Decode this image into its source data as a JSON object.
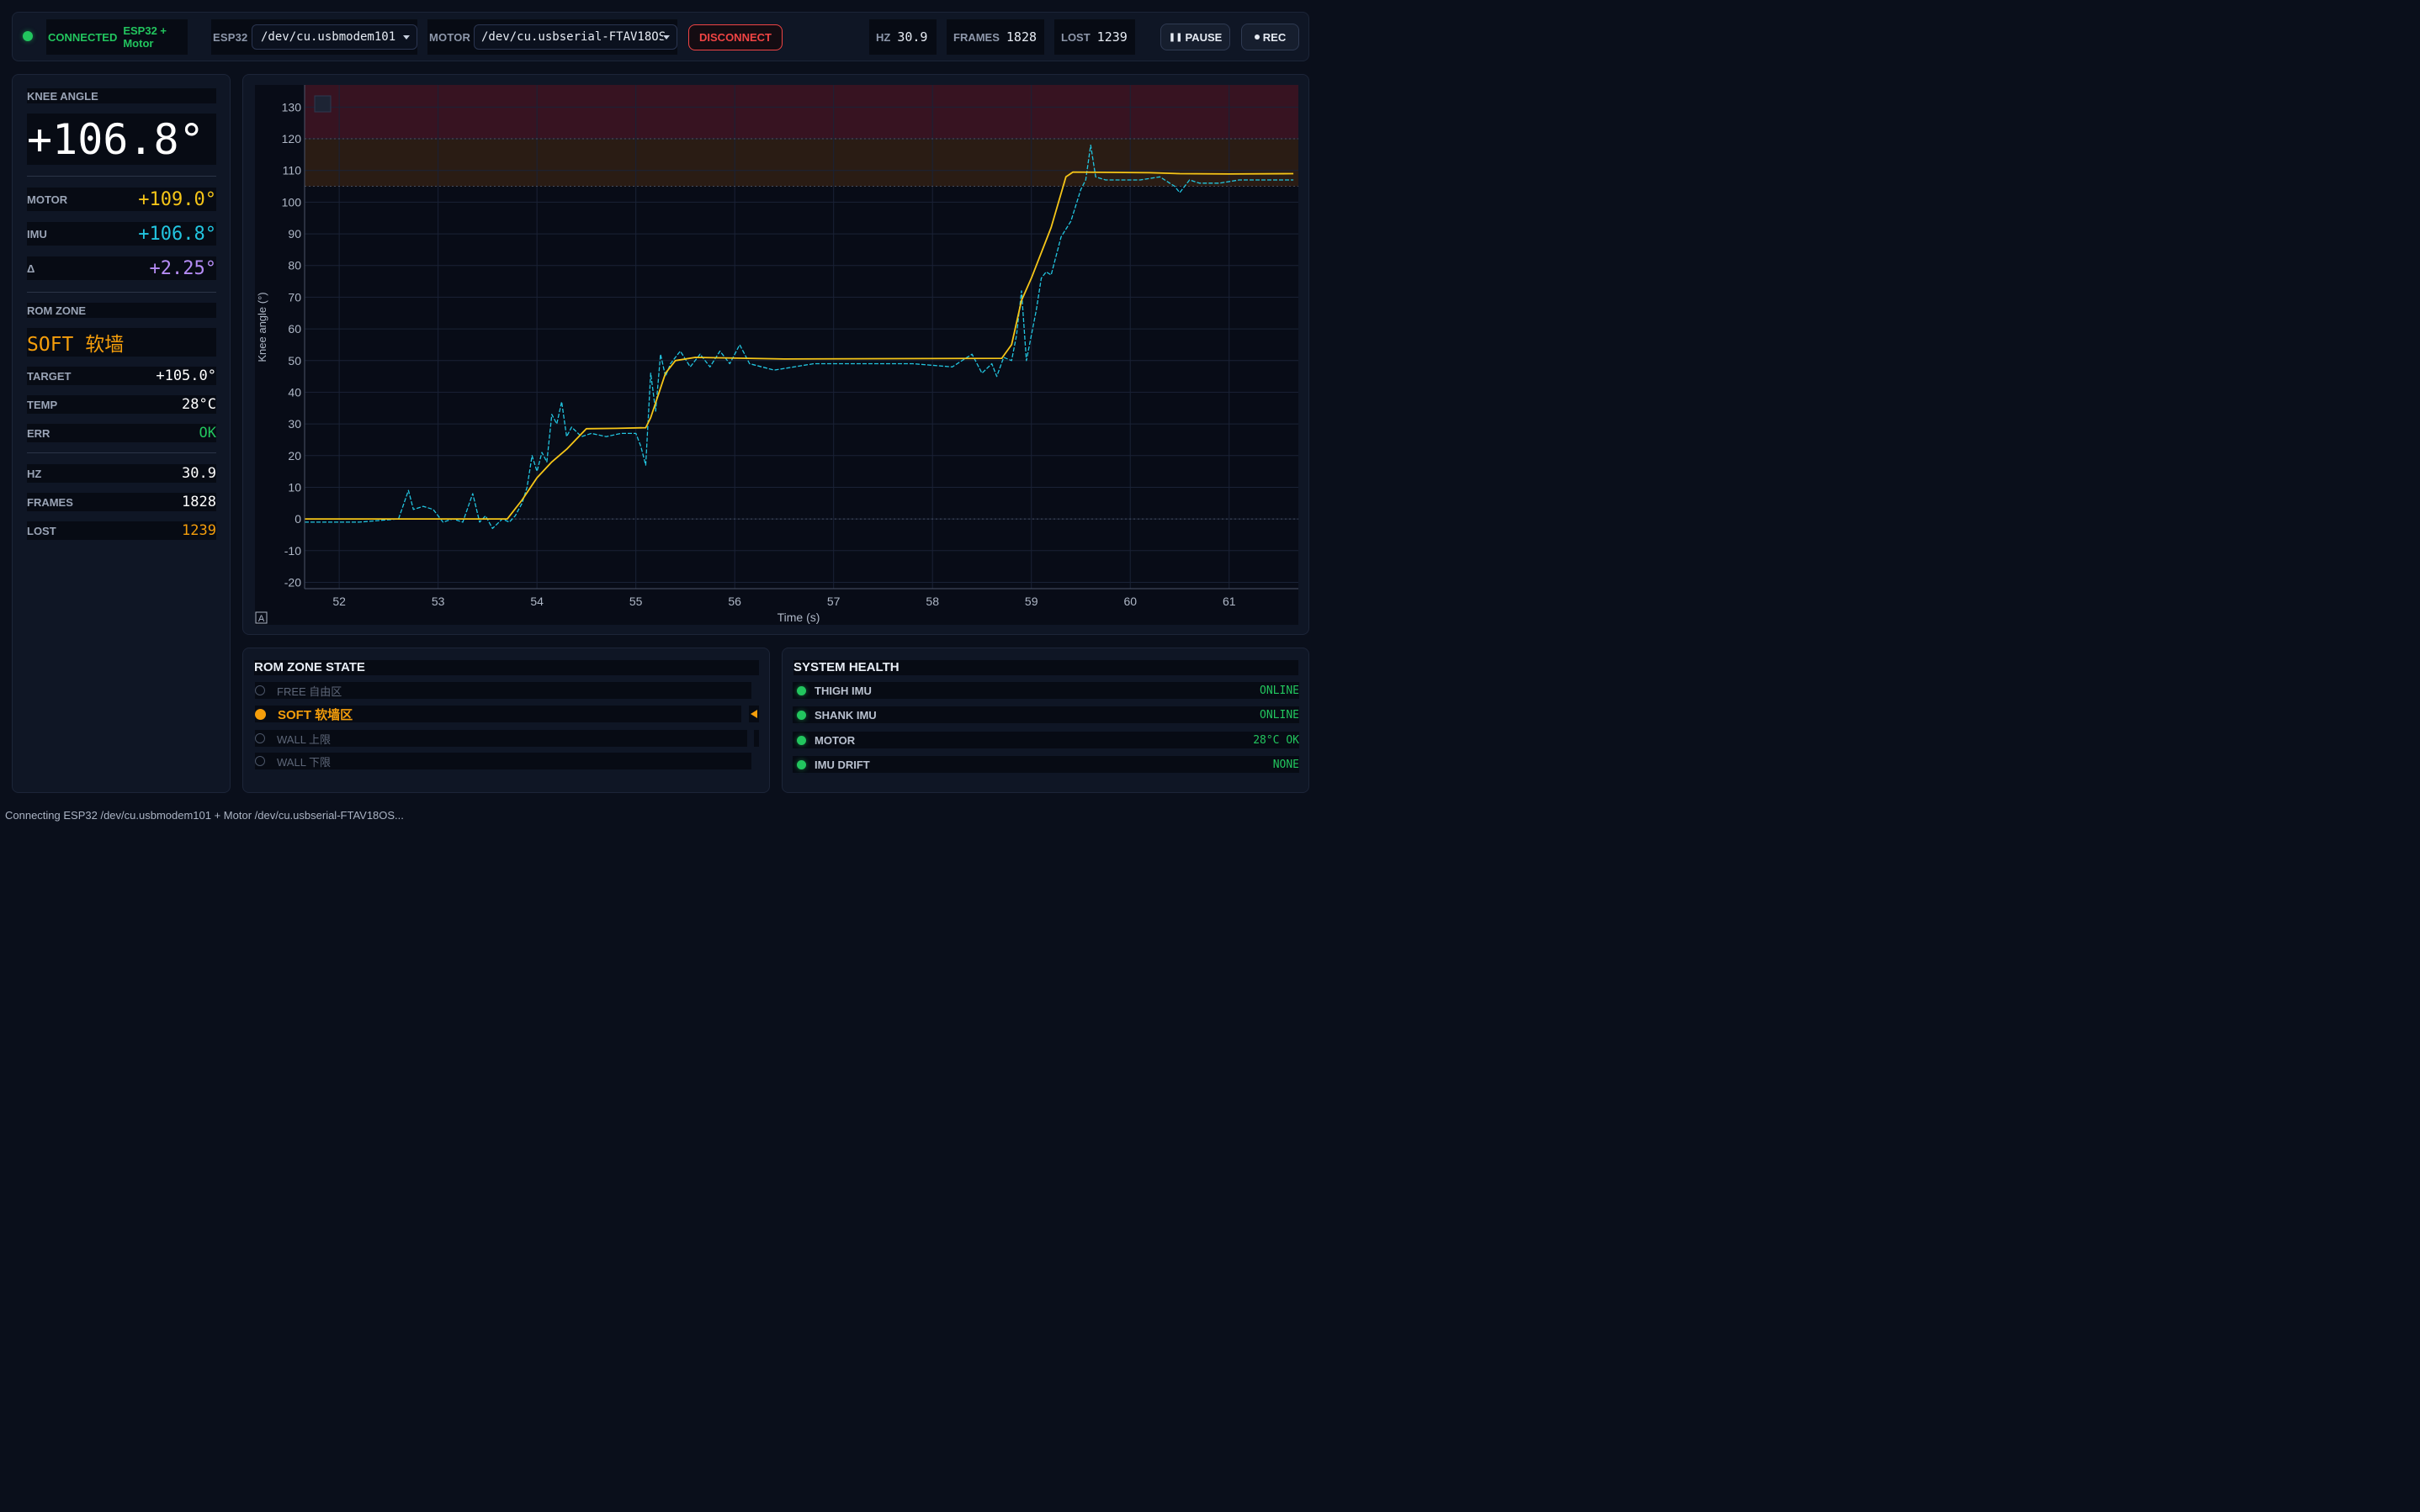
{
  "topbar": {
    "status": "CONNECTED",
    "device": "ESP32 + Motor",
    "esp32_label": "ESP32",
    "esp32_port": "/dev/cu.usbmodem101",
    "motor_label": "MOTOR",
    "motor_port": "/dev/cu.usbserial-FTAV18OS",
    "disconnect_label": "DISCONNECT",
    "hz_label": "HZ",
    "hz_value": "30.9",
    "frames_label": "FRAMES",
    "frames_value": "1828",
    "lost_label": "LOST",
    "lost_value": "1239",
    "pause_label": "PAUSE",
    "rec_label": "REC"
  },
  "left": {
    "knee_label": "KNEE ANGLE",
    "knee_value": "+106.8°",
    "motor_label": "MOTOR",
    "motor_value": "+109.0°",
    "imu_label": "IMU",
    "imu_value": "+106.8°",
    "delta_label": "Δ",
    "delta_value": "+2.25°",
    "rom_label": "ROM ZONE",
    "rom_value": "SOFT 软墙",
    "target_label": "TARGET",
    "target_value": "+105.0°",
    "temp_label": "TEMP",
    "temp_value": "28°C",
    "err_label": "ERR",
    "err_value": "OK",
    "hz_label": "HZ",
    "hz_value": "30.9",
    "frames_label": "FRAMES",
    "frames_value": "1828",
    "lost_label": "LOST",
    "lost_value": "1239"
  },
  "chart_data": {
    "type": "line",
    "xlabel": "Time (s)",
    "ylabel": "Knee angle (°)",
    "xlim": [
      51.65,
      61.7
    ],
    "ylim": [
      -22,
      137
    ],
    "x_ticks": [
      "52",
      "53",
      "54",
      "55",
      "56",
      "57",
      "58",
      "59",
      "60",
      "61"
    ],
    "y_ticks": [
      "130",
      "120",
      "110",
      "100",
      "90",
      "80",
      "70",
      "60",
      "50",
      "40",
      "30",
      "20",
      "10",
      "0",
      "-10",
      "-20"
    ],
    "zones": [
      {
        "name": "wall",
        "from": 120,
        "to": 137,
        "color": "#3a1422"
      },
      {
        "name": "soft",
        "from": 105,
        "to": 120,
        "color": "#2c1d14"
      }
    ],
    "series": [
      {
        "color": "#f5c518",
        "x": [
          51.65,
          53.7,
          53.85,
          54.0,
          54.15,
          54.3,
          54.5,
          54.8,
          55.1,
          55.15,
          55.3,
          55.4,
          55.6,
          56.5,
          58.7,
          58.8,
          58.9,
          59.0,
          59.2,
          59.35,
          59.42,
          60.2,
          60.5,
          61.0,
          61.65
        ],
        "y": [
          0,
          0,
          6,
          13,
          18,
          22,
          28.5,
          28.6,
          28.8,
          32,
          46,
          50,
          51,
          50.5,
          50.7,
          55,
          69,
          76,
          92,
          108,
          109.5,
          109.3,
          109.0,
          108.9,
          109.0
        ]
      },
      {
        "color": "#22c5e0",
        "dashed": true,
        "x": [
          51.65,
          51.9,
          52.2,
          52.4,
          52.6,
          52.7,
          52.75,
          52.85,
          52.95,
          53.05,
          53.15,
          53.25,
          53.35,
          53.42,
          53.48,
          53.55,
          53.65,
          53.72,
          53.78,
          53.85,
          53.9,
          53.95,
          54.0,
          54.05,
          54.1,
          54.15,
          54.2,
          54.25,
          54.3,
          54.35,
          54.45,
          54.55,
          54.7,
          54.85,
          55.0,
          55.05,
          55.1,
          55.15,
          55.2,
          55.25,
          55.3,
          55.35,
          55.45,
          55.55,
          55.65,
          55.75,
          55.85,
          55.95,
          56.05,
          56.15,
          56.4,
          56.8,
          57.3,
          57.8,
          58.2,
          58.4,
          58.5,
          58.6,
          58.65,
          58.72,
          58.8,
          58.85,
          58.9,
          58.95,
          59.05,
          59.1,
          59.15,
          59.2,
          59.3,
          59.4,
          59.5,
          59.55,
          59.6,
          59.65,
          59.75,
          59.9,
          60.1,
          60.3,
          60.45,
          60.5,
          60.6,
          60.7,
          60.9,
          61.1,
          61.3,
          61.65
        ],
        "y": [
          -1,
          -1,
          -1,
          -0.5,
          0,
          9,
          3,
          4,
          3,
          -1,
          0,
          -1,
          8,
          -1,
          1,
          -3,
          0,
          -1,
          1,
          5,
          10,
          20,
          15,
          21,
          18,
          33,
          30,
          37,
          26,
          29,
          26,
          27,
          26,
          27,
          27,
          23,
          17,
          46,
          34,
          52,
          45,
          49,
          53,
          48,
          52,
          48,
          53,
          49,
          55,
          49,
          47,
          49,
          49,
          49,
          48,
          52,
          46,
          49,
          45,
          51,
          50,
          58,
          72,
          50,
          66,
          76,
          78,
          77,
          89,
          94,
          104,
          107,
          118,
          108,
          107,
          107,
          107,
          108,
          105,
          103,
          107,
          106,
          106,
          107,
          107,
          107
        ]
      }
    ]
  },
  "rom": {
    "title": "ROM ZONE STATE",
    "zones": [
      {
        "label": "FREE 自由区"
      },
      {
        "label": "SOFT 软墙区"
      },
      {
        "label": "WALL 上限"
      },
      {
        "label": "WALL 下限"
      }
    ]
  },
  "health": {
    "title": "SYSTEM HEALTH",
    "items": [
      {
        "label": "THIGH IMU",
        "value": "ONLINE"
      },
      {
        "label": "SHANK IMU",
        "value": "ONLINE"
      },
      {
        "label": "MOTOR",
        "value": "28°C OK"
      },
      {
        "label": "IMU DRIFT",
        "value": "NONE"
      }
    ]
  },
  "statusbar": {
    "text": "Connecting ESP32 /dev/cu.usbmodem101 + Motor /dev/cu.usbserial-FTAV18OS..."
  },
  "colors": {
    "accent_green": "#22c55e",
    "accent_orange": "#f59e0b",
    "motor": "#f5c518",
    "imu": "#22c5e0",
    "delta": "#b58cf5",
    "danger": "#ef4444"
  }
}
